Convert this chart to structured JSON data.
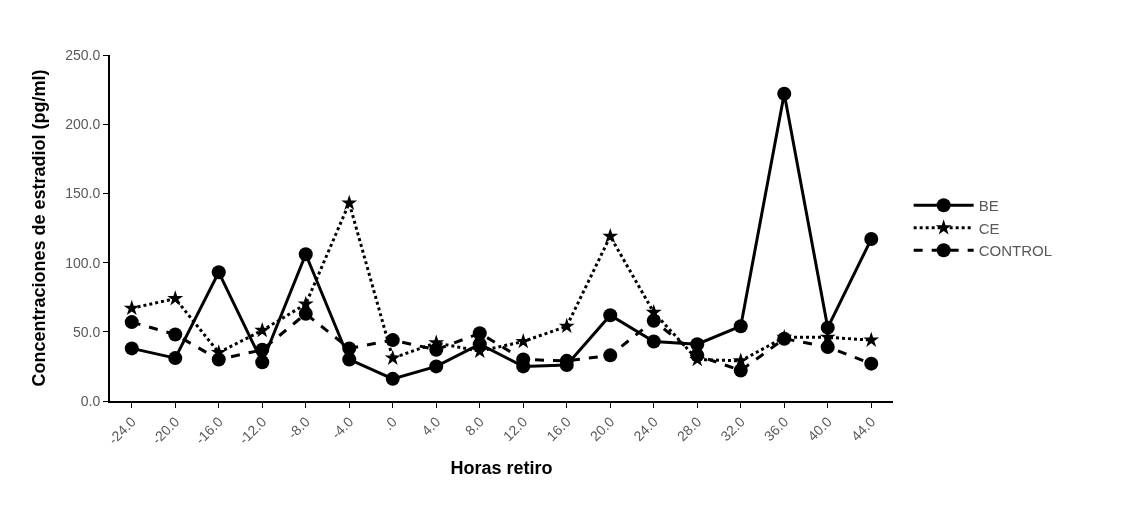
{
  "chart_data": {
    "type": "line",
    "xlabel": "Horas retiro",
    "ylabel": "Concentraciones de estradiol (pg/ml)",
    "categories": [
      "-24.0",
      "-20.0",
      "-16.0",
      "-12.0",
      "-8.0",
      "-4.0",
      ".0",
      "4.0",
      "8.0",
      "12.0",
      "16.0",
      "20.0",
      "24.0",
      "28.0",
      "32.0",
      "36.0",
      "40.0",
      "44.0"
    ],
    "series": [
      {
        "name": "BE",
        "color": "#000000",
        "marker": "circle",
        "line_style": "solid",
        "values": [
          38,
          31,
          93,
          28,
          106,
          30,
          16,
          25,
          41,
          25,
          26,
          62,
          43,
          41,
          54,
          222,
          53,
          117
        ]
      },
      {
        "name": "CE",
        "color": "#000000",
        "marker": "star",
        "line_style": "dotted",
        "values": [
          67,
          74,
          35,
          51,
          70,
          143,
          31,
          42,
          36,
          43,
          54,
          119,
          64,
          30,
          29,
          46,
          46,
          44
        ]
      },
      {
        "name": "CONTROL",
        "color": "#000000",
        "marker": "circle",
        "line_style": "dashed",
        "values": [
          57,
          48,
          30,
          37,
          63,
          38,
          44,
          37,
          49,
          30,
          29,
          33,
          58,
          33,
          22,
          45,
          39,
          27
        ]
      }
    ],
    "ylim": [
      0,
      250
    ],
    "yticks": [
      {
        "value": 0,
        "label": "0.0"
      },
      {
        "value": 50,
        "label": "50.0"
      },
      {
        "value": 100,
        "label": "100.0"
      },
      {
        "value": 150,
        "label": "150.0"
      },
      {
        "value": 200,
        "label": "200.0"
      },
      {
        "value": 250,
        "label": "250.0"
      }
    ],
    "legend": "right"
  }
}
